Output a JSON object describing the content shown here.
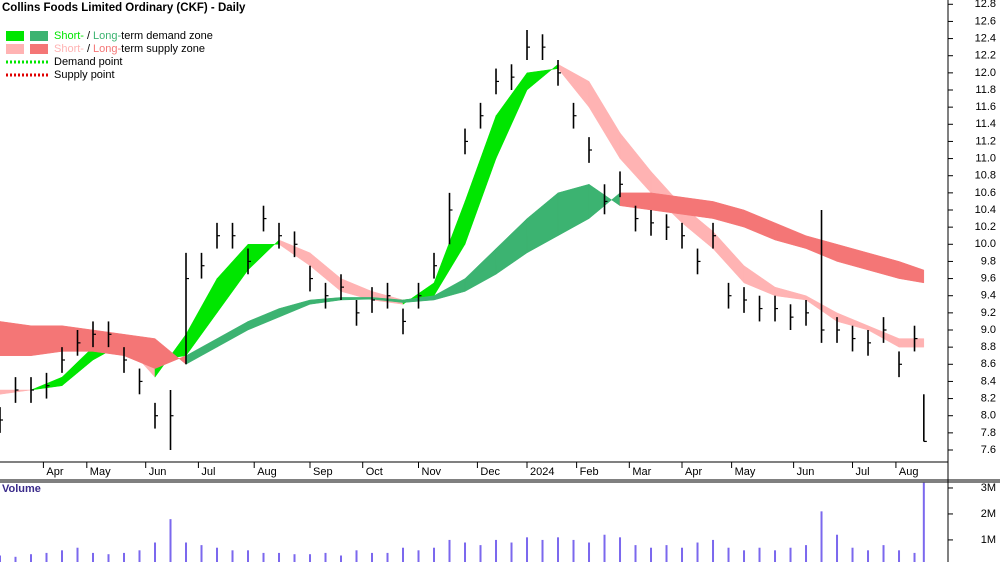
{
  "chart_data": {
    "type": "ohlc",
    "title": "Collins Foods Limited Ordinary (CKF) - Daily",
    "legend": [
      {
        "parts": [
          "Short-",
          "/",
          "Long-",
          "term demand zone"
        ],
        "colors": [
          "#00e600",
          "#3cb371"
        ]
      },
      {
        "parts": [
          "Short-",
          "/",
          "Long-",
          "term supply zone"
        ],
        "colors": [
          "#ffb3b3",
          "#f47676"
        ]
      },
      {
        "parts": [
          "Demand point"
        ],
        "colors": [
          "#00e600"
        ]
      },
      {
        "parts": [
          "Supply point"
        ],
        "colors": [
          "#e00000"
        ]
      }
    ],
    "x": [
      0,
      5,
      10,
      15,
      20,
      25,
      30,
      35,
      40,
      45,
      50,
      55,
      60,
      65,
      70,
      75,
      80,
      85,
      90,
      95,
      100,
      105,
      110,
      115,
      120,
      125,
      130,
      135,
      140,
      145,
      150,
      155,
      160,
      165,
      170,
      175,
      180,
      185,
      190,
      195,
      200,
      205,
      210,
      215,
      220,
      225,
      230,
      235,
      240,
      245,
      250,
      255,
      260,
      265,
      270,
      275,
      280,
      285,
      290,
      295,
      298
    ],
    "close": [
      7.95,
      8.3,
      8.3,
      8.35,
      8.65,
      8.85,
      8.95,
      8.95,
      8.65,
      8.4,
      8.0,
      8.0,
      9.6,
      9.75,
      10.1,
      10.1,
      9.8,
      10.3,
      10.1,
      10.0,
      9.6,
      9.4,
      9.5,
      9.2,
      9.35,
      9.4,
      9.1,
      9.4,
      9.75,
      10.4,
      11.2,
      11.5,
      11.9,
      11.95,
      12.3,
      12.3,
      12.0,
      11.5,
      11.1,
      10.5,
      10.7,
      10.3,
      10.25,
      10.2,
      10.1,
      9.8,
      10.1,
      9.4,
      9.35,
      9.25,
      9.25,
      9.15,
      9.2,
      9.0,
      9.0,
      8.9,
      8.85,
      9.0,
      8.6,
      8.9,
      7.7
    ],
    "high": [
      8.1,
      8.45,
      8.45,
      8.5,
      8.8,
      9.0,
      9.1,
      9.1,
      8.8,
      8.55,
      8.15,
      8.3,
      9.9,
      9.9,
      10.25,
      10.25,
      9.95,
      10.45,
      10.25,
      10.15,
      9.75,
      9.55,
      9.65,
      9.35,
      9.5,
      9.55,
      9.25,
      9.55,
      9.9,
      10.6,
      11.35,
      11.65,
      12.05,
      12.1,
      12.5,
      12.45,
      12.15,
      11.65,
      11.25,
      10.7,
      10.85,
      10.45,
      10.4,
      10.35,
      10.25,
      9.95,
      10.25,
      9.55,
      9.5,
      9.4,
      9.4,
      9.3,
      9.35,
      10.4,
      9.15,
      9.05,
      9.0,
      9.15,
      8.75,
      9.05,
      8.25
    ],
    "low": [
      7.8,
      8.15,
      8.15,
      8.2,
      8.5,
      8.7,
      8.8,
      8.8,
      8.5,
      8.25,
      7.85,
      7.6,
      8.6,
      9.6,
      9.95,
      9.95,
      9.65,
      10.15,
      9.95,
      9.85,
      9.45,
      9.25,
      9.35,
      9.05,
      9.2,
      9.25,
      8.95,
      9.25,
      9.6,
      10.0,
      11.05,
      11.35,
      11.75,
      11.8,
      12.15,
      12.15,
      11.85,
      11.35,
      10.95,
      10.35,
      10.55,
      10.15,
      10.1,
      10.05,
      9.95,
      9.65,
      9.95,
      9.25,
      9.2,
      9.1,
      9.1,
      9.0,
      9.05,
      8.85,
      8.85,
      8.75,
      8.7,
      8.85,
      8.45,
      8.75,
      7.7
    ],
    "color": "#000000",
    "xlim": [
      0,
      305.8
    ],
    "xticks": [
      {
        "value": 14,
        "label": "Apr"
      },
      {
        "value": 28,
        "label": "May"
      },
      {
        "value": 47,
        "label": "Jun"
      },
      {
        "value": 64,
        "label": "Jul"
      },
      {
        "value": 82,
        "label": "Aug"
      },
      {
        "value": 100,
        "label": "Sep"
      },
      {
        "value": 117,
        "label": "Oct"
      },
      {
        "value": 135,
        "label": "Nov"
      },
      {
        "value": 154,
        "label": "Dec"
      },
      {
        "value": 170,
        "label": "2024"
      },
      {
        "value": 186,
        "label": "Feb"
      },
      {
        "value": 203,
        "label": "Mar"
      },
      {
        "value": 220,
        "label": "Apr"
      },
      {
        "value": 236,
        "label": "May"
      },
      {
        "value": 256,
        "label": "Jun"
      },
      {
        "value": 275,
        "label": "Jul"
      },
      {
        "value": 289,
        "label": "Aug"
      }
    ],
    "ylim": [
      7.46,
      12.85
    ],
    "yticks": [
      7.6,
      7.8,
      {
        "value": 8,
        "label": "8.0"
      },
      8.2,
      8.4,
      8.6,
      8.8,
      {
        "value": 9,
        "label": "9.0"
      },
      9.2,
      9.4,
      9.6,
      9.8,
      {
        "value": 10,
        "label": "10.0"
      },
      10.2,
      10.4,
      10.6,
      10.8,
      {
        "value": 11,
        "label": "11.0"
      },
      11.2,
      11.4,
      11.6,
      11.8,
      {
        "value": 12,
        "label": "12.0"
      },
      12.2,
      12.4,
      12.6,
      12.8
    ],
    "zones": [
      {
        "x": [
          0,
          10,
          20,
          30,
          40,
          50,
          60,
          70,
          80,
          90,
          100,
          110,
          120,
          130,
          140,
          150,
          160,
          170,
          180,
          190,
          200,
          210,
          220,
          230,
          240,
          250,
          260,
          270,
          280,
          290,
          298
        ],
        "fast": [
          8.25,
          8.3,
          8.45,
          8.8,
          8.85,
          8.45,
          8.95,
          9.6,
          10.0,
          10.0,
          9.75,
          9.45,
          9.35,
          9.3,
          9.55,
          10.5,
          11.5,
          12.0,
          12.05,
          11.6,
          11.0,
          10.6,
          10.25,
          9.95,
          9.55,
          9.4,
          9.35,
          9.1,
          9.0,
          8.8,
          8.8
        ],
        "slow": [
          8.3,
          8.3,
          8.35,
          8.65,
          8.85,
          8.65,
          8.7,
          9.2,
          9.7,
          10.05,
          9.9,
          9.6,
          9.45,
          9.35,
          9.4,
          10.0,
          11.0,
          11.8,
          12.1,
          11.9,
          11.3,
          10.85,
          10.45,
          10.15,
          9.75,
          9.5,
          9.4,
          9.2,
          9.05,
          8.9,
          8.9
        ],
        "demand_color": "#00e600",
        "supply_color": "#ffb3b3"
      },
      {
        "x": [
          0,
          10,
          20,
          30,
          40,
          50,
          60,
          70,
          80,
          90,
          100,
          110,
          120,
          130,
          140,
          150,
          160,
          170,
          180,
          190,
          200,
          210,
          220,
          230,
          240,
          250,
          260,
          270,
          280,
          290,
          298
        ],
        "fast": [
          8.7,
          8.7,
          8.75,
          8.75,
          8.7,
          8.55,
          8.7,
          8.9,
          9.1,
          9.25,
          9.35,
          9.38,
          9.38,
          9.35,
          9.4,
          9.6,
          9.95,
          10.3,
          10.6,
          10.7,
          10.45,
          10.4,
          10.35,
          10.3,
          10.2,
          10.05,
          9.95,
          9.8,
          9.7,
          9.6,
          9.55
        ],
        "slow": [
          9.1,
          9.05,
          9.05,
          9.0,
          8.95,
          8.9,
          8.6,
          8.8,
          9.0,
          9.15,
          9.3,
          9.35,
          9.36,
          9.32,
          9.35,
          9.45,
          9.65,
          9.9,
          10.1,
          10.3,
          10.6,
          10.6,
          10.55,
          10.5,
          10.4,
          10.25,
          10.1,
          10.0,
          9.9,
          9.8,
          9.7
        ],
        "demand_color": "#3cb371",
        "supply_color": "#f47676"
      }
    ],
    "volume": {
      "label": "Volume",
      "color": "#7b68ee",
      "values": [
        400000,
        350000,
        450000,
        500000,
        600000,
        700000,
        500000,
        450000,
        500000,
        600000,
        900000,
        1800000,
        900000,
        800000,
        700000,
        600000,
        600000,
        500000,
        500000,
        450000,
        450000,
        500000,
        400000,
        600000,
        500000,
        500000,
        700000,
        600000,
        700000,
        1000000,
        900000,
        800000,
        1000000,
        900000,
        1100000,
        1000000,
        1100000,
        1000000,
        900000,
        1200000,
        1100000,
        800000,
        700000,
        800000,
        700000,
        900000,
        1000000,
        700000,
        600000,
        700000,
        600000,
        700000,
        800000,
        2100000,
        1200000,
        700000,
        600000,
        800000,
        600000,
        500000,
        3200000
      ],
      "ylim": [
        150000,
        3230000
      ],
      "yticks": [
        {
          "value": 1000000,
          "label": "1M"
        },
        {
          "value": 2000000,
          "label": "2M"
        },
        {
          "value": 3000000,
          "label": "3M"
        }
      ]
    }
  }
}
